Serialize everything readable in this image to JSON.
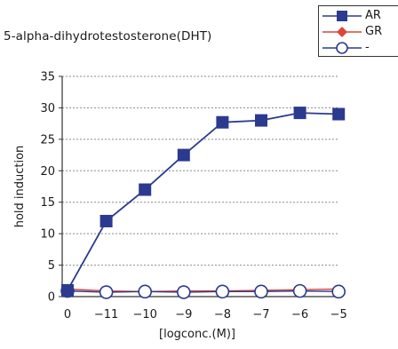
{
  "chart_data": {
    "type": "line",
    "title": "5-alpha-dihydrotestosterone(DHT)",
    "xlabel": "[logconc.(M)]",
    "ylabel": "hold induction",
    "categories": [
      "0",
      "−11",
      "−10",
      "−9",
      "−8",
      "−7",
      "−6",
      "−5"
    ],
    "yticks": [
      "0",
      "5",
      "10",
      "15",
      "20",
      "25",
      "30",
      "35"
    ],
    "ylim": [
      0,
      35
    ],
    "grid": "horizontal dotted",
    "legend_position": "top-right",
    "series": [
      {
        "name": "AR",
        "color": "#2b3a8f",
        "marker": "filled-square",
        "values": [
          1.0,
          12.0,
          17.0,
          22.5,
          27.7,
          28.0,
          29.2,
          29.0
        ]
      },
      {
        "name": "GR",
        "color": "#d9473a",
        "marker": "filled-diamond",
        "values": [
          1.2,
          0.9,
          0.8,
          0.9,
          0.9,
          1.0,
          1.1,
          1.2
        ]
      },
      {
        "name": "-",
        "color": "#2b3a8f",
        "marker": "open-circle",
        "values": [
          0.9,
          0.7,
          0.8,
          0.7,
          0.8,
          0.8,
          0.9,
          0.8
        ]
      }
    ]
  }
}
